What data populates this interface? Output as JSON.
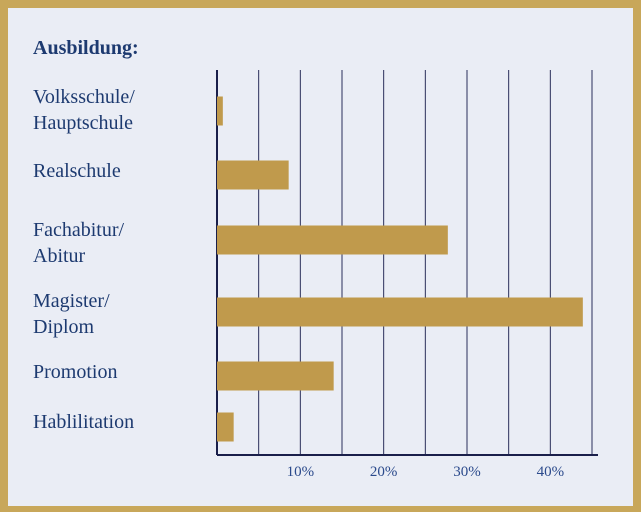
{
  "chart_data": {
    "type": "bar",
    "orientation": "horizontal",
    "title": "Ausbildung:",
    "categories": [
      "Volksschule/\nHauptschule",
      "Realschule",
      "Fachabitur/\nAbitur",
      "Magister/\nDiplom",
      "Promotion",
      "Hablilitation"
    ],
    "values": [
      0.7,
      8.6,
      27.7,
      43.9,
      14.0,
      2.0
    ],
    "color": "#c09a4c",
    "xlim": [
      0,
      45
    ],
    "xgrid": [
      5,
      10,
      15,
      20,
      25,
      30,
      35,
      40,
      45
    ],
    "xticks": [
      {
        "value": 10,
        "label": "10%"
      },
      {
        "value": 20,
        "label": "20%"
      },
      {
        "value": 30,
        "label": "30%"
      },
      {
        "value": 40,
        "label": "40%"
      }
    ],
    "grid": true
  }
}
